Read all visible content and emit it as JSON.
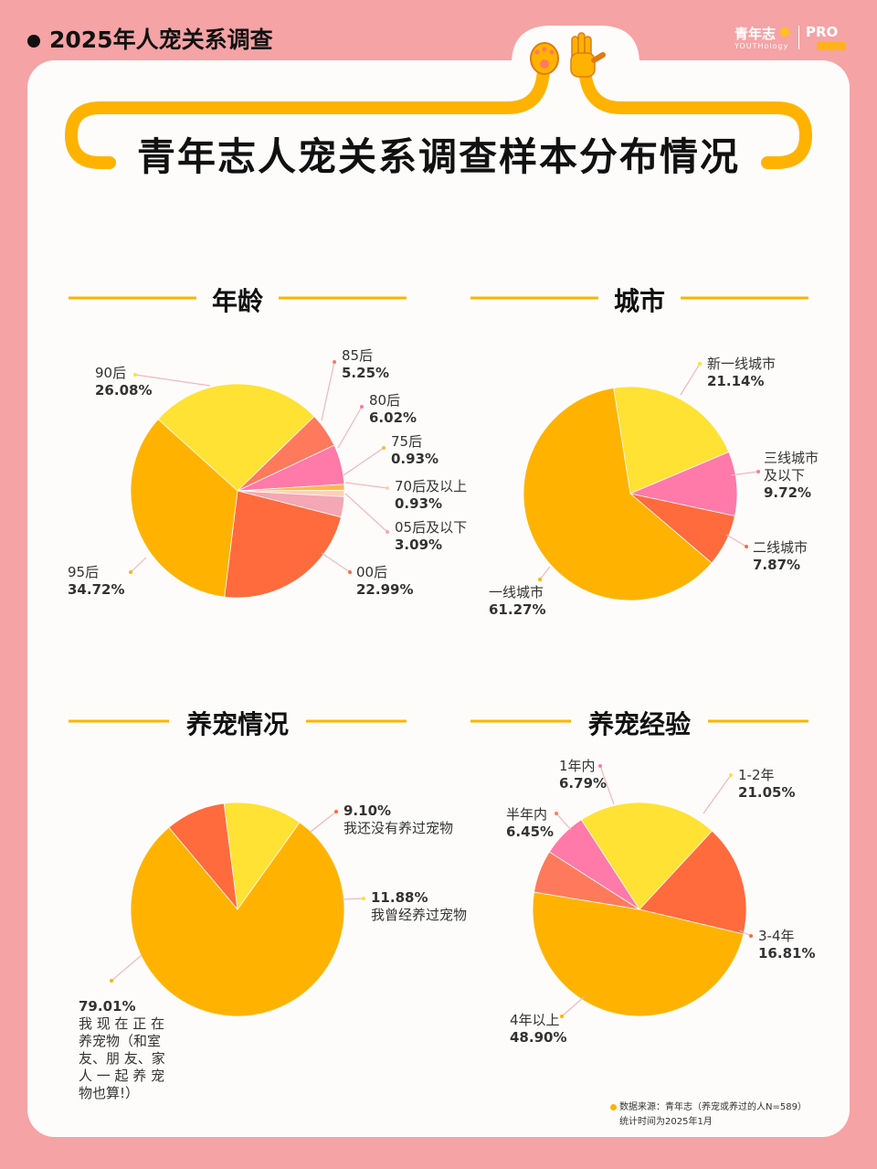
{
  "header": {
    "title": "2025年人宠关系调查",
    "logo_text": "青年志",
    "logo_sub": "YOUTHology",
    "logo_pro": "PRO"
  },
  "banner_title": "青年志人宠关系调查样本分布情况",
  "colors": {
    "background": "#f5a3a5",
    "card": "#fdfcfb",
    "accent": "#ffb300",
    "pie_orange": "#ffb300",
    "pie_yellow": "#ffe234",
    "pie_red": "#ff6b3d",
    "pie_pink": "#ff79a9",
    "pie_light_orange": "#ffb74d",
    "pie_light_pink": "#f4a7b4"
  },
  "chart_data": [
    {
      "type": "pie",
      "title": "年龄",
      "slices": [
        {
          "label": "90后",
          "value": 26.08,
          "text": "26.08%",
          "color": "#ffe234"
        },
        {
          "label": "85后",
          "value": 5.25,
          "text": "5.25%",
          "color": "#ff7a5c"
        },
        {
          "label": "80后",
          "value": 6.02,
          "text": "6.02%",
          "color": "#ff79a9"
        },
        {
          "label": "75后",
          "value": 0.93,
          "text": "0.93%",
          "color": "#ffb74d"
        },
        {
          "label": "70后及以上",
          "value": 0.93,
          "text": "0.93%",
          "color": "#ffd0b0"
        },
        {
          "label": "05后及以下",
          "value": 3.09,
          "text": "3.09%",
          "color": "#f4a7b4"
        },
        {
          "label": "00后",
          "value": 22.99,
          "text": "22.99%",
          "color": "#ff6b3d"
        },
        {
          "label": "95后",
          "value": 34.72,
          "text": "34.72%",
          "color": "#ffb300"
        }
      ]
    },
    {
      "type": "pie",
      "title": "城市",
      "slices": [
        {
          "label": "新一线城市",
          "value": 21.14,
          "text": "21.14%",
          "color": "#ffe234"
        },
        {
          "label": "三线城市及以下",
          "value": 9.72,
          "text": "9.72%",
          "color": "#ff79a9"
        },
        {
          "label": "二线城市",
          "value": 7.87,
          "text": "7.87%",
          "color": "#ff6b3d"
        },
        {
          "label": "一线城市",
          "value": 61.27,
          "text": "61.27%",
          "color": "#ffb300"
        }
      ]
    },
    {
      "type": "pie",
      "title": "养宠情况",
      "slices": [
        {
          "label": "我还没有养过宠物",
          "value": 9.1,
          "text": "9.10%",
          "color": "#ff6b3d"
        },
        {
          "label": "我曾经养过宠物",
          "value": 11.88,
          "text": "11.88%",
          "color": "#ffe234"
        },
        {
          "label": "我现在正在养宠物（和室友、朋友、家人一起养宠物也算!）",
          "value": 79.01,
          "text": "79.01%",
          "color": "#ffb300"
        }
      ]
    },
    {
      "type": "pie",
      "title": "养宠经验",
      "slices": [
        {
          "label": "1-2年",
          "value": 21.05,
          "text": "21.05%",
          "color": "#ffe234"
        },
        {
          "label": "3-4年",
          "value": 16.81,
          "text": "16.81%",
          "color": "#ff6b3d"
        },
        {
          "label": "4年以上",
          "value": 48.9,
          "text": "48.90%",
          "color": "#ffb300"
        },
        {
          "label": "半年内",
          "value": 6.45,
          "text": "6.45%",
          "color": "#ff7a5c"
        },
        {
          "label": "1年内",
          "value": 6.79,
          "text": "6.79%",
          "color": "#ff79a9"
        }
      ]
    }
  ],
  "labels": {
    "age": {
      "l90": "90后",
      "v90": "26.08%",
      "l85": "85后",
      "v85": "5.25%",
      "l80": "80后",
      "v80": "6.02%",
      "l75": "75后",
      "v75": "0.93%",
      "l70": "70后及以上",
      "v70": "0.93%",
      "l05": "05后及以下",
      "v05": "3.09%",
      "l00": "00后",
      "v00": "22.99%",
      "l95": "95后",
      "v95": "34.72%"
    },
    "city": {
      "l_new1": "新一线城市",
      "v_new1": "21.14%",
      "l_t3a": "三线城市",
      "l_t3b": "及以下",
      "v_t3": "9.72%",
      "l_t2": "二线城市",
      "v_t2": "7.87%",
      "l_t1": "一线城市",
      "v_t1": "61.27%"
    },
    "status": {
      "v_never": "9.10%",
      "l_never": "我还没有养过宠物",
      "v_past": "11.88%",
      "l_past": "我曾经养过宠物",
      "v_now": "79.01%",
      "l_now1": "我 现 在 正 在",
      "l_now2": "养宠物（和室",
      "l_now3": "友、朋 友、家",
      "l_now4": "人 一 起 养 宠",
      "l_now5": "物也算!）"
    },
    "experience": {
      "l_1y": "1年内",
      "v_1y": "6.79%",
      "l_12": "1-2年",
      "v_12": "21.05%",
      "l_half": "半年内",
      "v_half": "6.45%",
      "l_34": "3-4年",
      "v_34": "16.81%",
      "l_4p": "4年以上",
      "v_4p": "48.90%"
    }
  },
  "footer": {
    "source": "数据来源：青年志（养宠或养过的人N=589）",
    "period": "统计时间为2025年1月"
  }
}
